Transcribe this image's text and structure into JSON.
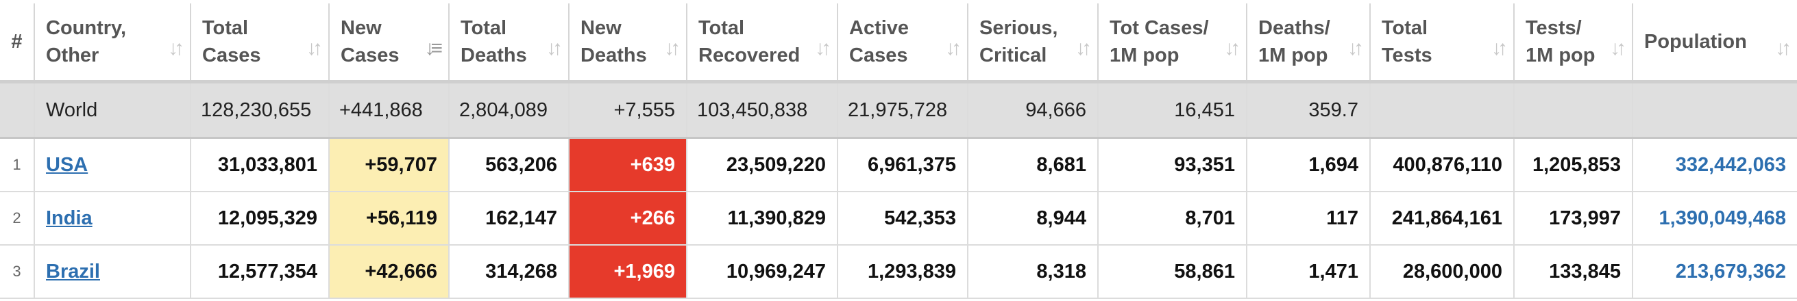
{
  "headers": [
    {
      "label": "#"
    },
    {
      "label": "Country,\nOther"
    },
    {
      "label": "Total\nCases"
    },
    {
      "label": "New\nCases"
    },
    {
      "label": "Total\nDeaths"
    },
    {
      "label": "New\nDeaths"
    },
    {
      "label": "Total\nRecovered"
    },
    {
      "label": "Active\nCases"
    },
    {
      "label": "Serious,\nCritical"
    },
    {
      "label": "Tot Cases/\n1M pop"
    },
    {
      "label": "Deaths/\n1M pop"
    },
    {
      "label": "Total\nTests"
    },
    {
      "label": "Tests/\n1M pop"
    },
    {
      "label": "Population"
    }
  ],
  "world": {
    "country": "World",
    "total_cases": "128,230,655",
    "new_cases": "+441,868",
    "total_deaths": "2,804,089",
    "new_deaths": "+7,555",
    "total_recovered": "103,450,838",
    "active_cases": "21,975,728",
    "serious_critical": "94,666",
    "tot_cases_1m": "16,451",
    "deaths_1m": "359.7",
    "total_tests": "",
    "tests_1m": "",
    "population": ""
  },
  "rows": [
    {
      "rank": "1",
      "country": "USA",
      "total_cases": "31,033,801",
      "new_cases": "+59,707",
      "total_deaths": "563,206",
      "new_deaths": "+639",
      "total_recovered": "23,509,220",
      "active_cases": "6,961,375",
      "serious_critical": "8,681",
      "tot_cases_1m": "93,351",
      "deaths_1m": "1,694",
      "total_tests": "400,876,110",
      "tests_1m": "1,205,853",
      "population": "332,442,063"
    },
    {
      "rank": "2",
      "country": "India",
      "total_cases": "12,095,329",
      "new_cases": "+56,119",
      "total_deaths": "162,147",
      "new_deaths": "+266",
      "total_recovered": "11,390,829",
      "active_cases": "542,353",
      "serious_critical": "8,944",
      "tot_cases_1m": "8,701",
      "deaths_1m": "117",
      "total_tests": "241,864,161",
      "tests_1m": "173,997",
      "population": "1,390,049,468"
    },
    {
      "rank": "3",
      "country": "Brazil",
      "total_cases": "12,577,354",
      "new_cases": "+42,666",
      "total_deaths": "314,268",
      "new_deaths": "+1,969",
      "total_recovered": "10,969,247",
      "active_cases": "1,293,839",
      "serious_critical": "8,318",
      "tot_cases_1m": "58,861",
      "deaths_1m": "1,471",
      "total_tests": "28,600,000",
      "tests_1m": "133,845",
      "population": "213,679,362"
    }
  ],
  "colors": {
    "new_cases_bg": "#fceeb3",
    "new_deaths_bg": "#e63a2b",
    "link": "#2d6fb0",
    "world_row_bg": "#dfdfdf"
  },
  "icons": {
    "sort": "sort-arrows-icon",
    "sort_active": "sort-desc-icon"
  }
}
